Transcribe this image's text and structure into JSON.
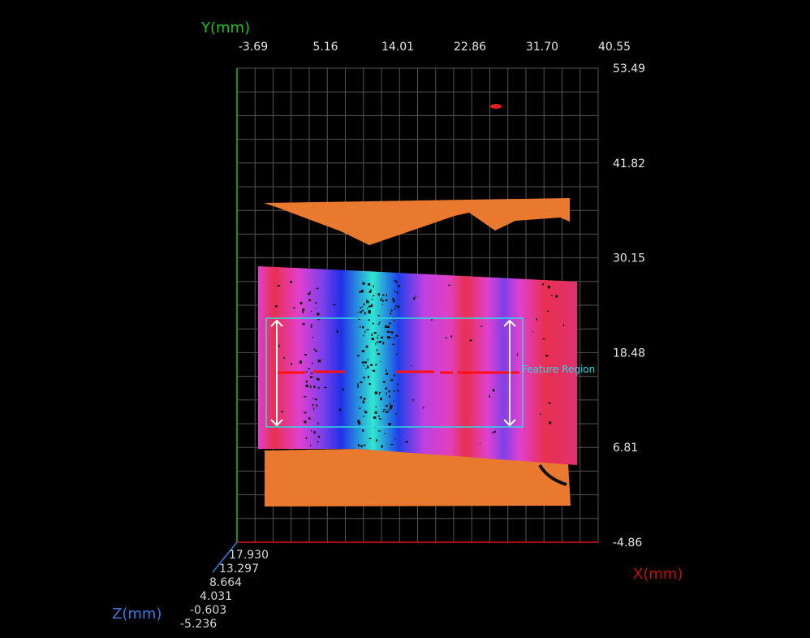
{
  "axes": {
    "y_title": "Y(mm)",
    "x_title": "X(mm)",
    "z_title": "Z(mm)",
    "top_ticks": [
      "-3.69",
      "5.16",
      "14.01",
      "22.86",
      "31.70",
      "40.55"
    ],
    "right_ticks": [
      "53.49",
      "41.82",
      "30.15",
      "18.48",
      "6.81",
      "-4.86"
    ],
    "z_ticks": [
      "17.930",
      "13.297",
      "8.664",
      "4.031",
      "-0.603",
      "-5.236"
    ]
  },
  "feature_region": {
    "label": "Feature Region"
  },
  "colors": {
    "x_axis": "#e01010",
    "y_axis": "#20c020",
    "z_axis": "#3a78e0",
    "region": "#30d8e0",
    "surface_base": "#e8792f",
    "grid": "#555555"
  }
}
